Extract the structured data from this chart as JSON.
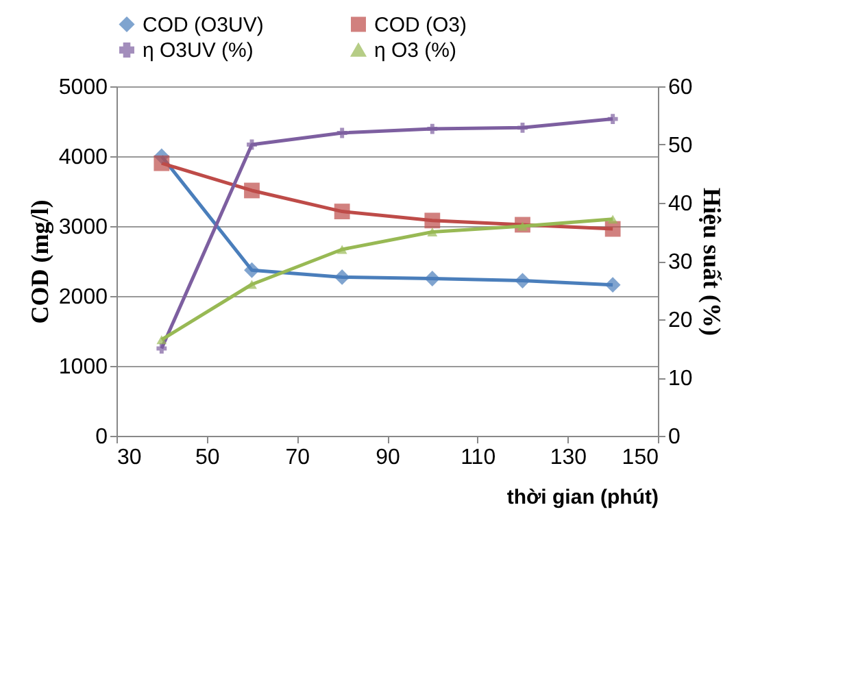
{
  "chart_data": {
    "type": "line",
    "xlabel": "thời gian (phút)",
    "ylabel": "COD (mg/l)",
    "y2label": "Hiệu suất (%)",
    "x": [
      40,
      60,
      80,
      100,
      120,
      140
    ],
    "xlim": [
      30,
      150
    ],
    "xticks": [
      30,
      50,
      70,
      90,
      110,
      130,
      150
    ],
    "ylim": [
      0,
      5000
    ],
    "yticks": [
      0,
      1000,
      2000,
      3000,
      4000,
      5000
    ],
    "y2lim": [
      0,
      60
    ],
    "y2ticks": [
      0,
      10,
      20,
      30,
      40,
      50,
      60
    ],
    "grid": "y",
    "legend": "top",
    "series": [
      {
        "name": "COD (O3UV)",
        "color": "#4a7ebb",
        "marker": "diamond",
        "values": [
          4000,
          2370,
          2270,
          2250,
          2220,
          2160
        ]
      },
      {
        "name": "COD (O3)",
        "color": "#be4b48",
        "marker": "square",
        "values": [
          3900,
          3510,
          3210,
          3080,
          3020,
          2960
        ]
      },
      {
        "name": "η O3UV (%)",
        "color": "#7d5fa0",
        "marker": "cross",
        "axis": "y2",
        "values": [
          15,
          50,
          52,
          52.7,
          52.9,
          54.4
        ]
      },
      {
        "name": "η O3 (%)",
        "color": "#98b954",
        "marker": "triangle",
        "axis": "y2",
        "values": [
          16.5,
          26,
          32,
          35,
          36,
          37.2
        ]
      }
    ]
  }
}
